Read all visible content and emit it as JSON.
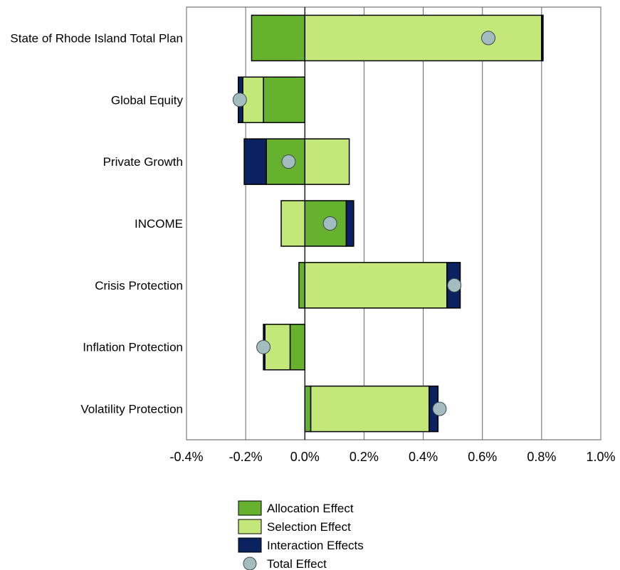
{
  "chart_data": {
    "type": "bar",
    "orientation": "horizontal",
    "stacked": true,
    "title": "",
    "xlabel": "",
    "ylabel": "",
    "xlim": [
      -0.4,
      1.0
    ],
    "x_ticks": [
      -0.4,
      -0.2,
      0.0,
      0.2,
      0.4,
      0.6,
      0.8,
      1.0
    ],
    "x_tick_labels": [
      "-0.4%",
      "-0.2%",
      "0.0%",
      "0.2%",
      "0.4%",
      "0.6%",
      "0.8%",
      "1.0%"
    ],
    "grid": true,
    "legend_position": "bottom",
    "categories": [
      "State of Rhode Island Total Plan",
      "Global Equity",
      "Private Growth",
      "INCOME",
      "Crisis Protection",
      "Inflation Protection",
      "Volatility Protection"
    ],
    "series": [
      {
        "name": "Allocation Effect",
        "color": "#66b22e",
        "values": [
          -0.18,
          -0.14,
          -0.13,
          0.14,
          -0.02,
          -0.05,
          0.02
        ]
      },
      {
        "name": "Selection Effect",
        "color": "#c3e779",
        "values": [
          0.8,
          -0.07,
          0.15,
          -0.08,
          0.48,
          -0.085,
          0.4
        ]
      },
      {
        "name": "Interaction Effects",
        "color": "#0b2260",
        "values": [
          0.005,
          -0.015,
          -0.075,
          0.025,
          0.045,
          -0.005,
          0.03
        ]
      }
    ],
    "total": {
      "name": "Total Effect",
      "color": "#a3bcbf",
      "values": [
        0.62,
        -0.22,
        -0.055,
        0.085,
        0.505,
        -0.14,
        0.455
      ]
    }
  }
}
